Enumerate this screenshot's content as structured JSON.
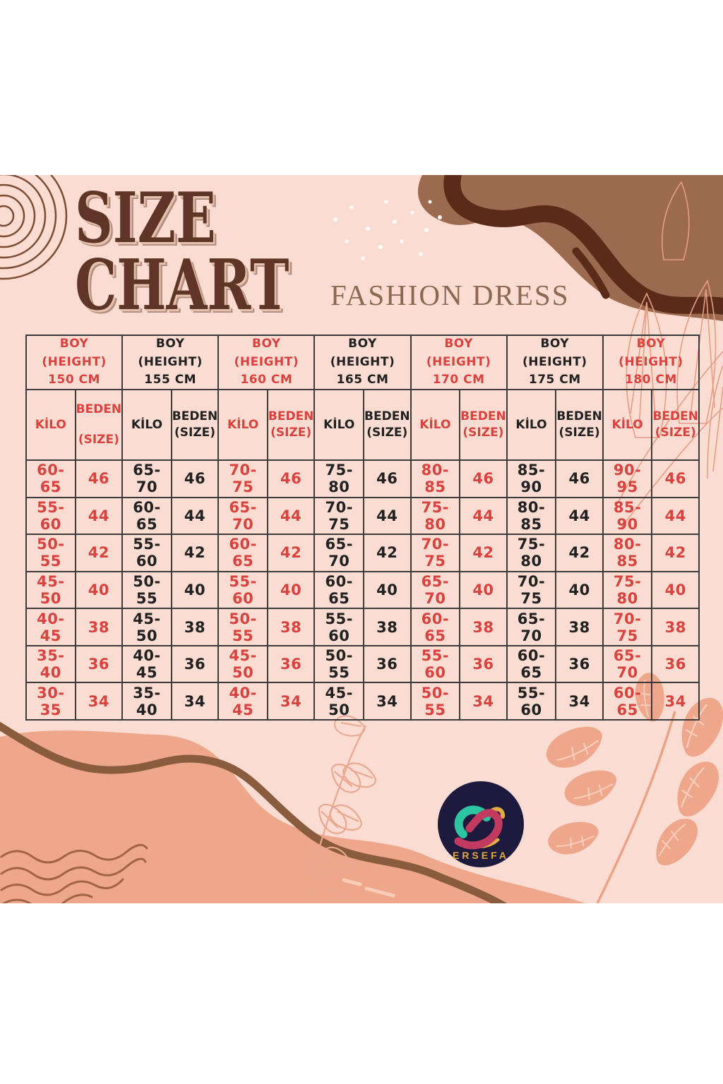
{
  "page": {
    "title_line1": "SIZE",
    "title_line2": "CHART",
    "subtitle": "FASHION DRESS"
  },
  "logo": {
    "name": "ERSEFA",
    "circle_color": "#1e1a3e",
    "text_color": "#e0a843"
  },
  "colors": {
    "background_pink": "#fbdcd2",
    "accent_red": "#da423d",
    "text_black": "#212121",
    "title_brown": "#5e3526",
    "subtitle_brown": "#8b6952",
    "blob_brown": "#9c6a4f",
    "stripe_dark_brown": "#5b2b1a",
    "salmon_blob": "#efa78b",
    "table_border": "#3a3a3a"
  },
  "chart_data": {
    "type": "table",
    "title": "SIZE CHART",
    "subtitle": "FASHION DRESS",
    "header_template": {
      "line1": "BOY",
      "line2": "(HEIGHT)"
    },
    "subheaders": {
      "kilo": "KİLO",
      "size_line1": "BEDEN",
      "size_line2": "(SIZE)"
    },
    "sizes": [
      "46",
      "44",
      "42",
      "40",
      "38",
      "36",
      "34"
    ],
    "groups": [
      {
        "height_cm": "150 CM",
        "accent": "red",
        "kilo": [
          "60-65",
          "55-60",
          "50-55",
          "45-50",
          "40-45",
          "35-40",
          "30-35"
        ]
      },
      {
        "height_cm": "155 CM",
        "accent": "black",
        "kilo": [
          "65-70",
          "60-65",
          "55-60",
          "50-55",
          "45-50",
          "40-45",
          "35-40"
        ]
      },
      {
        "height_cm": "160 CM",
        "accent": "red",
        "kilo": [
          "70-75",
          "65-70",
          "60-65",
          "55-60",
          "50-55",
          "45-50",
          "40-45"
        ]
      },
      {
        "height_cm": "165 CM",
        "accent": "black",
        "kilo": [
          "75-80",
          "70-75",
          "65-70",
          "60-65",
          "55-60",
          "50-55",
          "45-50"
        ]
      },
      {
        "height_cm": "170 CM",
        "accent": "red",
        "kilo": [
          "80-85",
          "75-80",
          "70-75",
          "65-70",
          "60-65",
          "55-60",
          "50-55"
        ]
      },
      {
        "height_cm": "175 CM",
        "accent": "black",
        "kilo": [
          "85-90",
          "80-85",
          "75-80",
          "70-75",
          "65-70",
          "60-65",
          "55-60"
        ]
      },
      {
        "height_cm": "180 CM",
        "accent": "red",
        "kilo": [
          "90-95",
          "85-90",
          "80-85",
          "75-80",
          "70-75",
          "65-70",
          "60-65"
        ]
      }
    ]
  }
}
